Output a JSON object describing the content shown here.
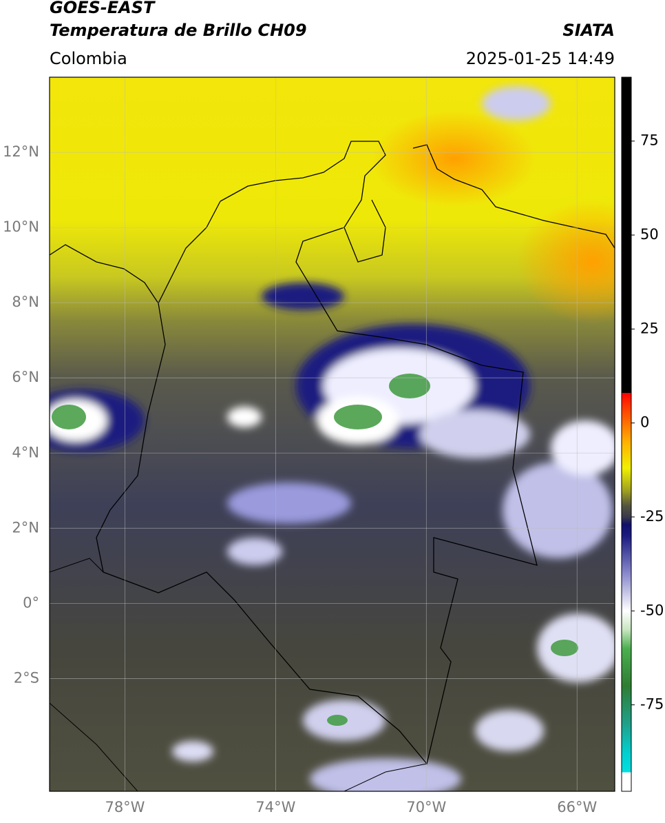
{
  "chart_data": {
    "type": "map",
    "title": "GOES-EAST",
    "subtitle": "Temperatura de Brillo CH09",
    "source": "SIATA",
    "region": "Colombia",
    "timestamp": "2025-01-25 14:49",
    "xlim": [
      -80,
      -65
    ],
    "ylim": [
      -5,
      14
    ],
    "xticks": [
      {
        "value": -78,
        "label": "78°W"
      },
      {
        "value": -74,
        "label": "74°W"
      },
      {
        "value": -70,
        "label": "70°W"
      },
      {
        "value": -66,
        "label": "66°W"
      }
    ],
    "yticks": [
      {
        "value": 12,
        "label": "12°N"
      },
      {
        "value": 10,
        "label": "10°N"
      },
      {
        "value": 8,
        "label": "8°N"
      },
      {
        "value": 6,
        "label": "6°N"
      },
      {
        "value": 4,
        "label": "4°N"
      },
      {
        "value": 2,
        "label": "2°N"
      },
      {
        "value": 0,
        "label": "0°"
      },
      {
        "value": -2,
        "label": "2°S"
      }
    ],
    "grid": true,
    "colorbar": {
      "lim": [
        -98,
        92
      ],
      "ticks": [
        -75,
        -50,
        -25,
        0,
        25,
        50,
        75
      ],
      "colormap": [
        {
          "value": -98,
          "color": "#ffffff"
        },
        {
          "value": -93,
          "color": "#ffffff"
        },
        {
          "value": -93,
          "color": "#00e0e0"
        },
        {
          "value": -88,
          "color": "#00d0d0"
        },
        {
          "value": -80,
          "color": "#20a08a"
        },
        {
          "value": -70,
          "color": "#2e7d32"
        },
        {
          "value": -60,
          "color": "#4caf50"
        },
        {
          "value": -55,
          "color": "#c8e6c0"
        },
        {
          "value": -50,
          "color": "#ffffff"
        },
        {
          "value": -40,
          "color": "#8888cc"
        },
        {
          "value": -30,
          "color": "#1a1a80"
        },
        {
          "value": -27,
          "color": "#10106a"
        },
        {
          "value": -25,
          "color": "#3a3a4a"
        },
        {
          "value": -22,
          "color": "#555540"
        },
        {
          "value": -18,
          "color": "#a0a020"
        },
        {
          "value": -12,
          "color": "#f0f000"
        },
        {
          "value": -5,
          "color": "#ffb000"
        },
        {
          "value": 5,
          "color": "#ff3000"
        },
        {
          "value": 8,
          "color": "#ff0000"
        },
        {
          "value": 8,
          "color": "#000000"
        },
        {
          "value": 92,
          "color": "#000000"
        }
      ]
    }
  }
}
